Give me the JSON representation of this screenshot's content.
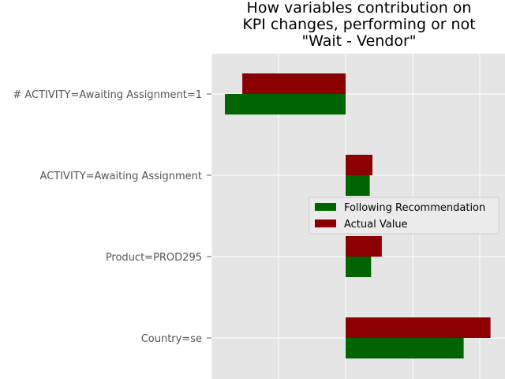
{
  "chart_data": {
    "type": "bar",
    "orientation": "horizontal",
    "title": [
      "How variables contribution on",
      "KPI changes, performing or not",
      "\"Wait - Vendor\""
    ],
    "xlabel": "",
    "ylabel": "",
    "xlim": [
      -1.0,
      1.2
    ],
    "grid": true,
    "legend_position": "center-right",
    "categories": [
      "# ACTIVITY=Awaiting Assignment=1",
      "ACTIVITY=Awaiting Assignment",
      "Product=PROD295",
      "Country=se"
    ],
    "series": [
      {
        "name": "Following Recommendation",
        "color": "#006400",
        "values": [
          -0.9,
          0.18,
          0.19,
          0.88
        ]
      },
      {
        "name": "Actual Value",
        "color": "#8b0000",
        "values": [
          -0.77,
          0.2,
          0.27,
          1.08
        ]
      }
    ]
  }
}
